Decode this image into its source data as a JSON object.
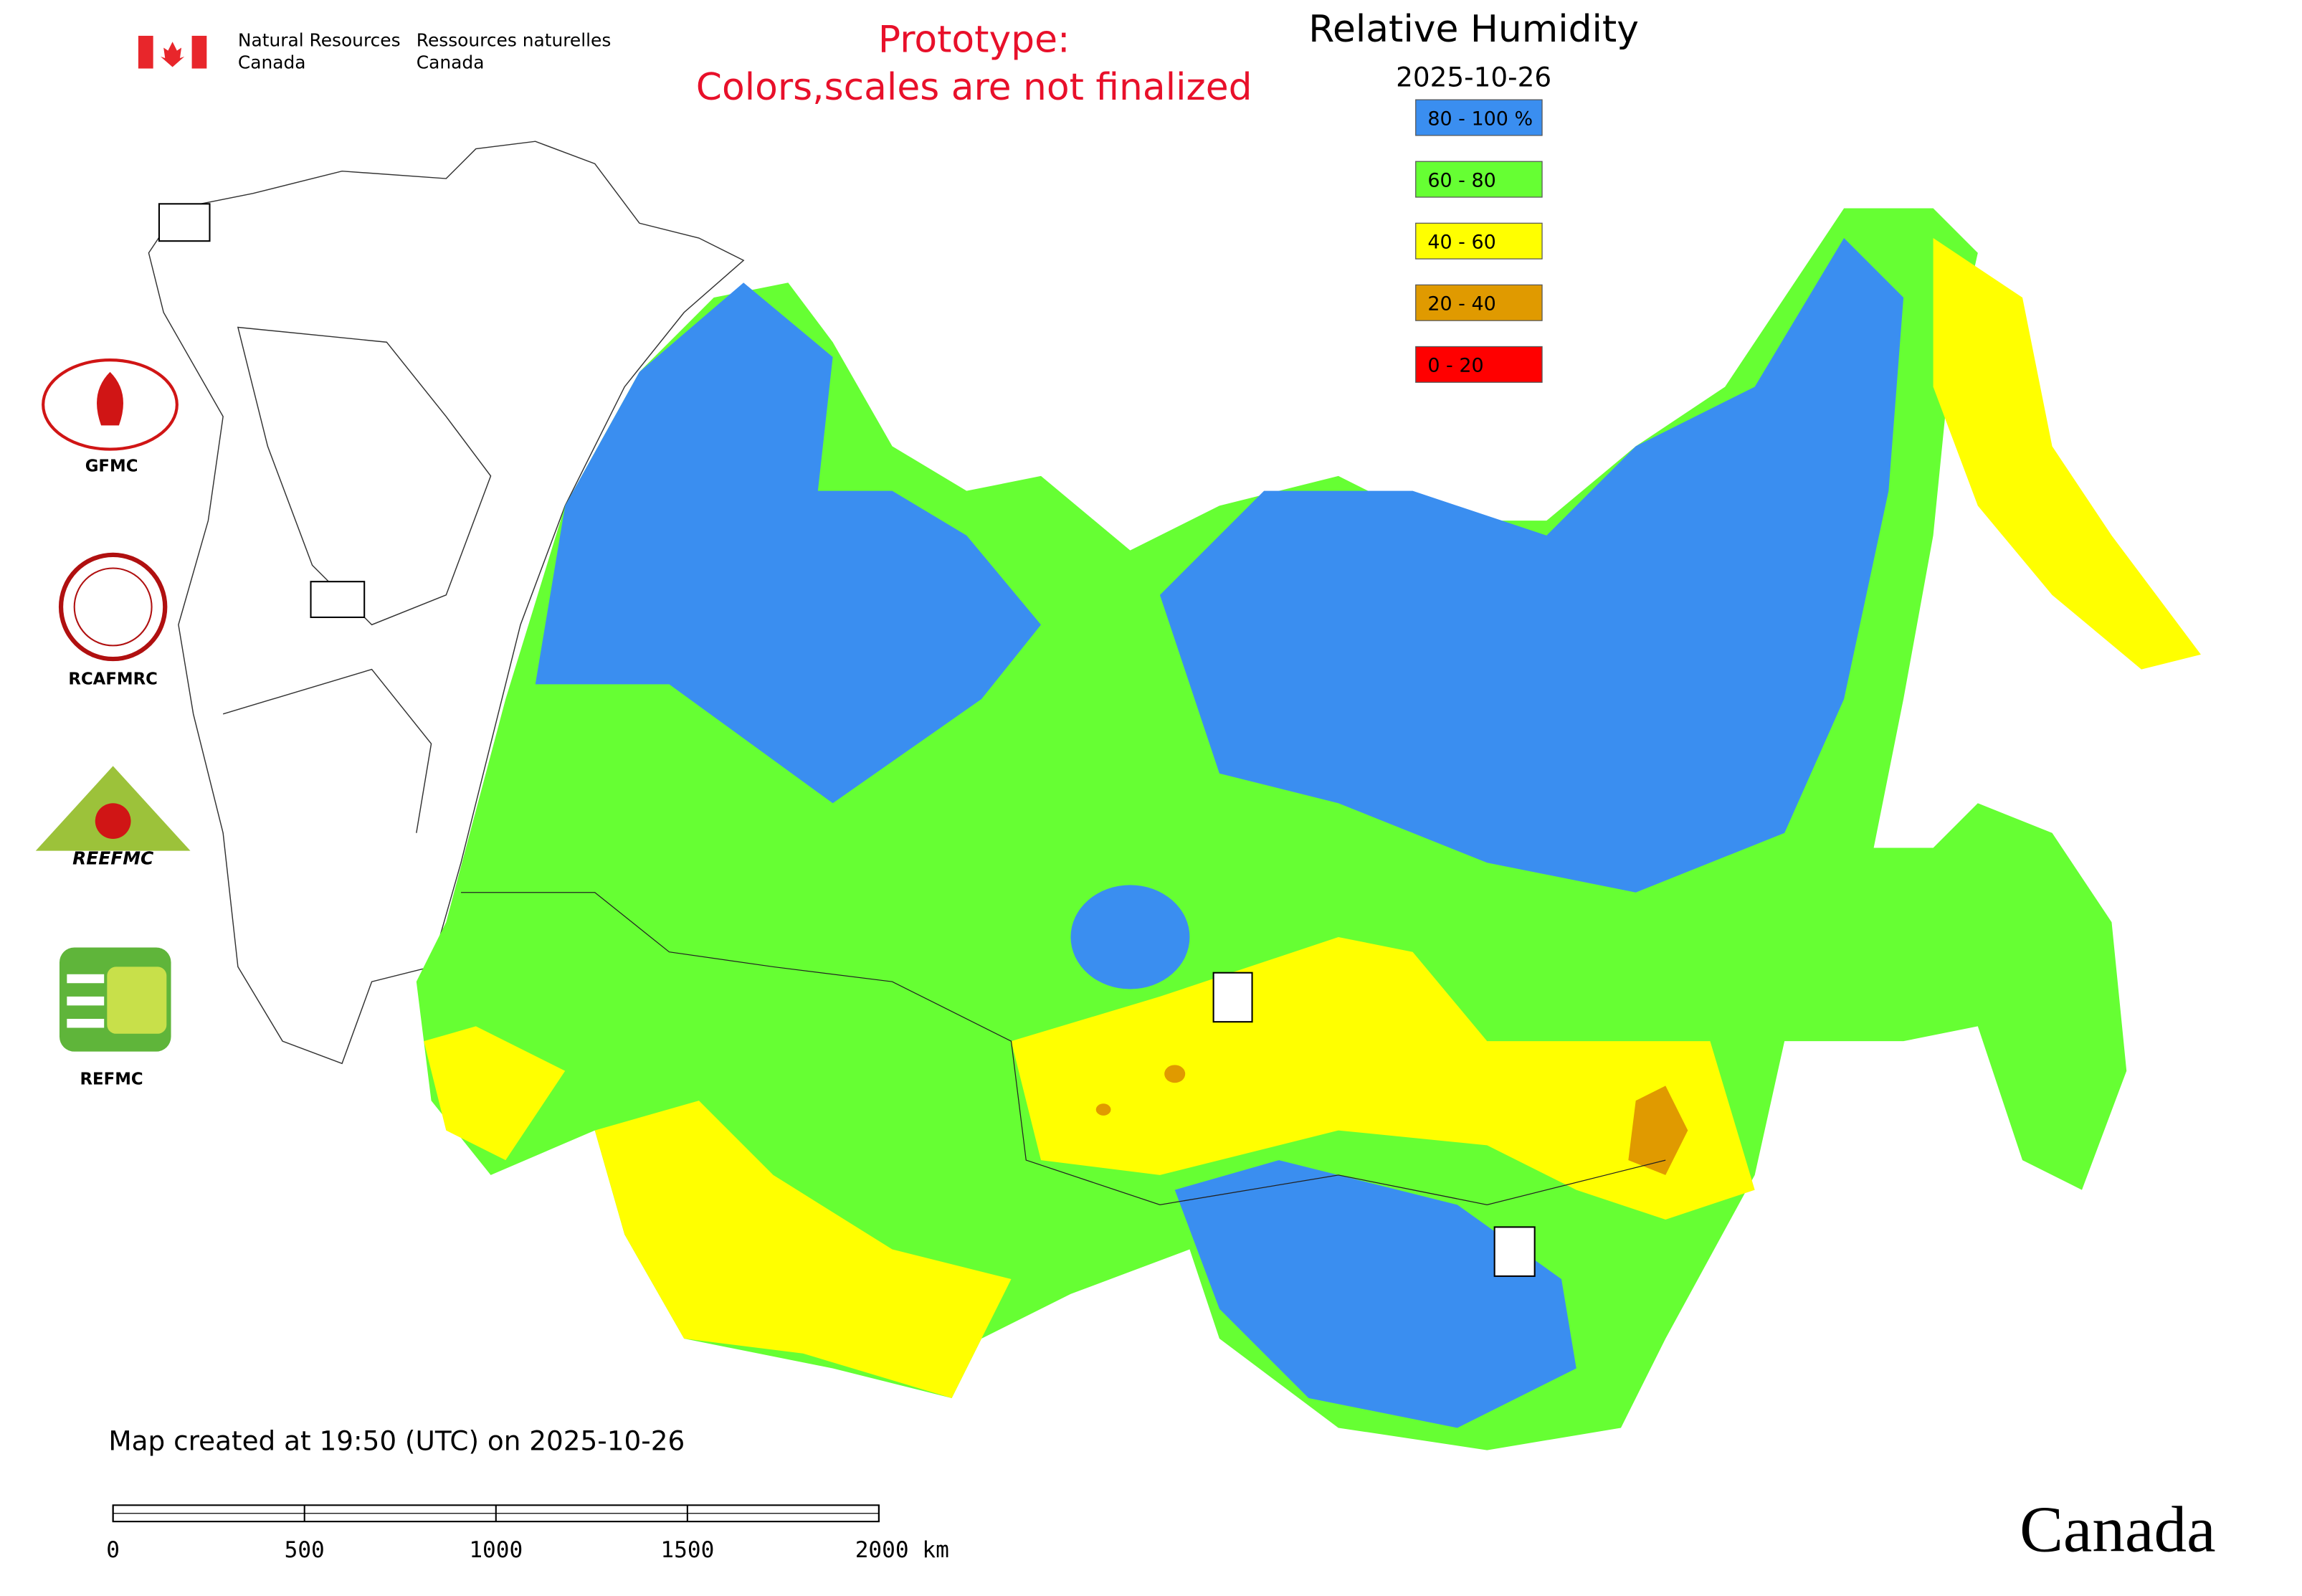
{
  "header": {
    "department_en": "Natural Resources",
    "country_en": "Canada",
    "department_fr": "Ressources naturelles",
    "country_fr": "Canada",
    "notice_line1": "Prototype:",
    "notice_line2": "Colors,scales are not finalized"
  },
  "title": "Relative Humidity",
  "date": "2025-10-26",
  "legend": [
    {
      "label": "80 - 100 %",
      "color": "#3a8ef0"
    },
    {
      "label": "60 - 80",
      "color": "#66ff33"
    },
    {
      "label": "40 - 60",
      "color": "#ffff00"
    },
    {
      "label": "20 - 40",
      "color": "#e09a00"
    },
    {
      "label": "0 - 20",
      "color": "#ff0000"
    }
  ],
  "logos": [
    "GFMC",
    "RCAFMRC",
    "REEFMC",
    "REFMC"
  ],
  "footer": "Map created at 19:50 (UTC) on 2025-10-26",
  "scale_bar": {
    "ticks": [
      0,
      500,
      1000,
      1500,
      {
        "value": 2000,
        "label": "2000 km"
      }
    ]
  },
  "wordmark": "Canada"
}
